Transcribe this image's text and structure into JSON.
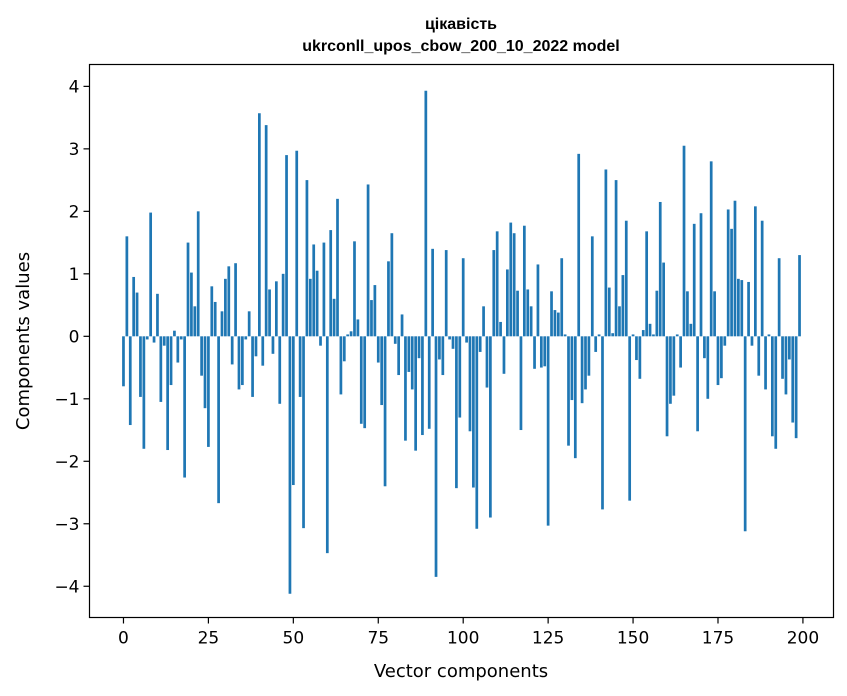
{
  "chart_data": {
    "type": "bar",
    "title": "цікавість",
    "subtitle": "ukrconll_upos_cbow_200_10_2022 model",
    "xlabel": "Vector components",
    "ylabel": "Components values",
    "xlim": [
      -10,
      209
    ],
    "ylim": [
      -4.5,
      4.35
    ],
    "xticks": [
      0,
      25,
      50,
      75,
      100,
      125,
      150,
      175,
      200
    ],
    "yticks": [
      -4,
      -3,
      -2,
      -1,
      0,
      1,
      2,
      3,
      4
    ],
    "ytick_labels": [
      "−4",
      "−3",
      "−2",
      "−1",
      "0",
      "1",
      "2",
      "3",
      "4"
    ],
    "grid": false,
    "bar_color": "#1f77b4",
    "x": [
      0,
      1,
      2,
      3,
      4,
      5,
      6,
      7,
      8,
      9,
      10,
      11,
      12,
      13,
      14,
      15,
      16,
      17,
      18,
      19,
      20,
      21,
      22,
      23,
      24,
      25,
      26,
      27,
      28,
      29,
      30,
      31,
      32,
      33,
      34,
      35,
      36,
      37,
      38,
      39,
      40,
      41,
      42,
      43,
      44,
      45,
      46,
      47,
      48,
      49,
      50,
      51,
      52,
      53,
      54,
      55,
      56,
      57,
      58,
      59,
      60,
      61,
      62,
      63,
      64,
      65,
      66,
      67,
      68,
      69,
      70,
      71,
      72,
      73,
      74,
      75,
      76,
      77,
      78,
      79,
      80,
      81,
      82,
      83,
      84,
      85,
      86,
      87,
      88,
      89,
      90,
      91,
      92,
      93,
      94,
      95,
      96,
      97,
      98,
      99,
      100,
      101,
      102,
      103,
      104,
      105,
      106,
      107,
      108,
      109,
      110,
      111,
      112,
      113,
      114,
      115,
      116,
      117,
      118,
      119,
      120,
      121,
      122,
      123,
      124,
      125,
      126,
      127,
      128,
      129,
      130,
      131,
      132,
      133,
      134,
      135,
      136,
      137,
      138,
      139,
      140,
      141,
      142,
      143,
      144,
      145,
      146,
      147,
      148,
      149,
      150,
      151,
      152,
      153,
      154,
      155,
      156,
      157,
      158,
      159,
      160,
      161,
      162,
      163,
      164,
      165,
      166,
      167,
      168,
      169,
      170,
      171,
      172,
      173,
      174,
      175,
      176,
      177,
      178,
      179,
      180,
      181,
      182,
      183,
      184,
      185,
      186,
      187,
      188,
      189,
      190,
      191,
      192,
      193,
      194,
      195,
      196,
      197,
      198,
      199
    ],
    "values": [
      -0.8,
      1.6,
      -1.42,
      0.95,
      0.7,
      -0.97,
      -1.8,
      -0.05,
      1.98,
      -0.1,
      0.68,
      -1.05,
      -0.15,
      -1.82,
      -0.78,
      0.09,
      -0.42,
      -0.05,
      -2.26,
      1.5,
      1.02,
      0.48,
      2.0,
      -0.63,
      -1.15,
      -1.77,
      0.8,
      0.55,
      -2.67,
      0.4,
      0.92,
      1.12,
      -0.45,
      1.17,
      -0.85,
      -0.78,
      -0.05,
      0.4,
      -0.97,
      -0.32,
      3.57,
      -0.47,
      3.38,
      0.75,
      -0.28,
      0.88,
      -1.08,
      1.0,
      2.9,
      -4.12,
      -2.38,
      2.97,
      -0.97,
      -3.07,
      2.5,
      0.92,
      1.47,
      1.05,
      -0.15,
      1.5,
      -3.47,
      1.7,
      0.6,
      2.2,
      -0.93,
      -0.4,
      0.03,
      0.08,
      1.52,
      0.27,
      -1.4,
      -1.47,
      2.43,
      0.58,
      0.82,
      -0.42,
      -1.1,
      -2.4,
      1.2,
      1.65,
      -0.12,
      -0.62,
      0.35,
      -1.67,
      -0.57,
      -0.85,
      -1.83,
      -0.35,
      -1.58,
      3.93,
      -1.48,
      1.4,
      -3.85,
      -0.37,
      -0.62,
      1.38,
      -0.05,
      -0.2,
      -2.43,
      -1.3,
      1.25,
      -0.1,
      -1.52,
      -2.42,
      -3.08,
      -0.25,
      0.48,
      -0.82,
      -2.9,
      1.38,
      1.68,
      0.23,
      -0.6,
      1.07,
      1.82,
      1.65,
      0.73,
      -1.5,
      1.77,
      0.75,
      0.48,
      -0.52,
      1.15,
      -0.5,
      -0.48,
      -3.03,
      0.72,
      0.42,
      0.38,
      1.25,
      0.03,
      -1.75,
      -1.02,
      -1.95,
      2.92,
      -1.07,
      -0.85,
      -0.63,
      1.6,
      -0.25,
      0.03,
      -2.77,
      2.67,
      0.78,
      0.05,
      2.5,
      0.48,
      0.98,
      1.85,
      -2.63,
      0.03,
      -0.38,
      -0.68,
      0.1,
      1.68,
      0.2,
      0.03,
      0.73,
      2.15,
      1.18,
      -1.6,
      -1.08,
      -0.95,
      0.03,
      -0.5,
      3.05,
      0.72,
      0.2,
      1.8,
      -1.52,
      1.97,
      -0.35,
      -1.0,
      2.8,
      0.72,
      -0.78,
      -0.67,
      -0.15,
      2.03,
      1.72,
      2.17,
      0.92,
      0.9,
      -3.12,
      0.87,
      -0.15,
      2.08,
      -0.63,
      1.85,
      -0.85,
      0.03,
      -1.6,
      -1.8,
      1.25,
      -0.68,
      -0.93,
      -0.37,
      -1.38,
      -1.63,
      1.3
    ]
  }
}
